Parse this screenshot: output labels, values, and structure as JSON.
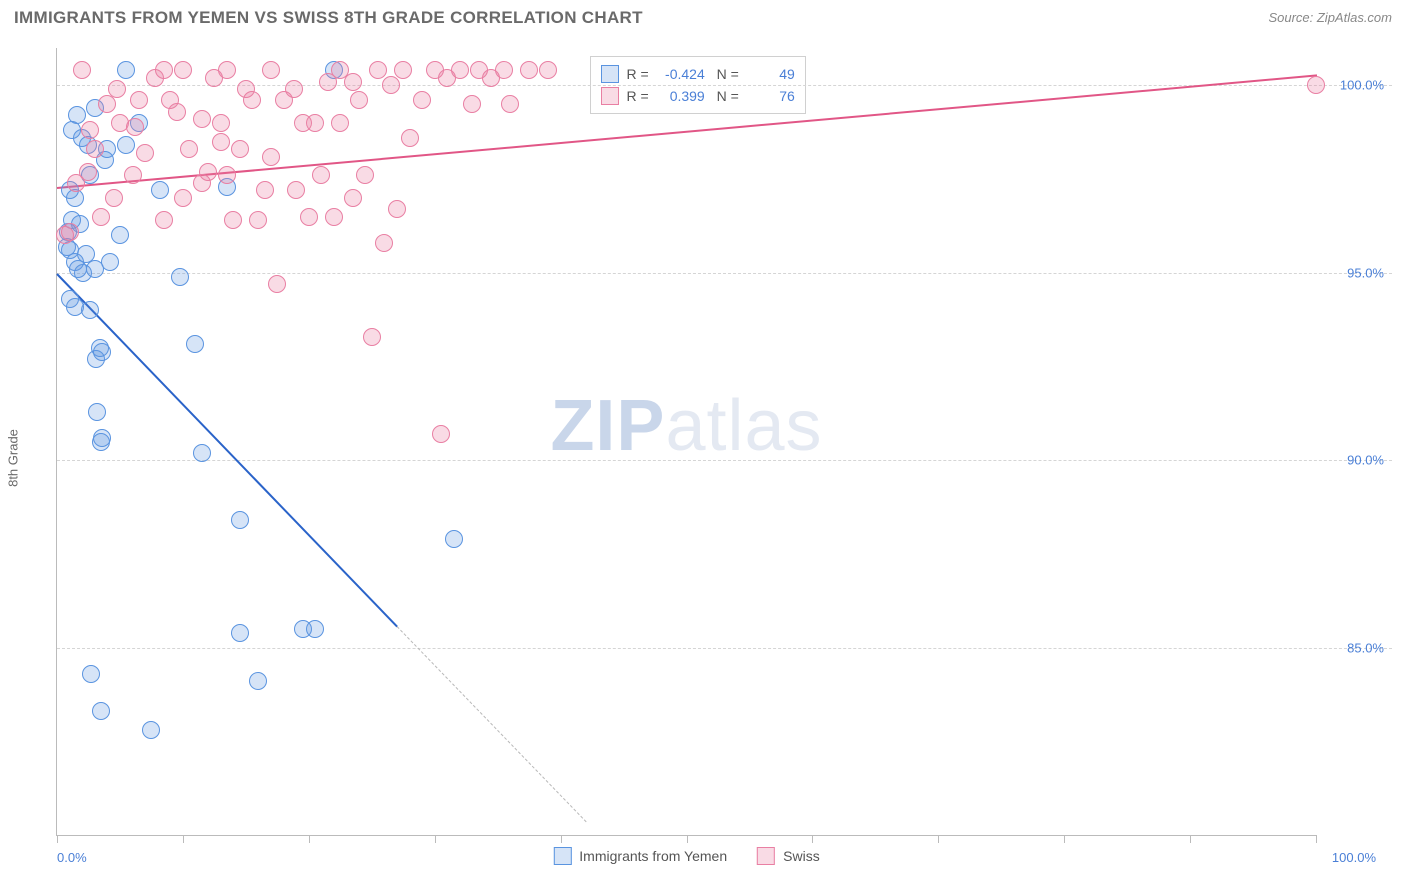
{
  "title": "IMMIGRANTS FROM YEMEN VS SWISS 8TH GRADE CORRELATION CHART",
  "source_prefix": "Source: ",
  "source": "ZipAtlas.com",
  "ylabel": "8th Grade",
  "chart": {
    "type": "scatter",
    "xlim": [
      0,
      100
    ],
    "ylim": [
      80,
      101
    ],
    "x_ticks": [
      0,
      10,
      20,
      30,
      40,
      50,
      60,
      70,
      80,
      90,
      100
    ],
    "y_ticks": [
      85,
      90,
      95,
      100
    ],
    "y_tick_labels": [
      "85.0%",
      "90.0%",
      "95.0%",
      "100.0%"
    ],
    "x_min_label": "0.0%",
    "x_max_label": "100.0%",
    "grid_color": "#d5d5d5",
    "axis_color": "#bbbbbb",
    "background_color": "#ffffff",
    "tick_label_color": "#4a7fd6",
    "marker_radius": 9,
    "marker_stroke": 1.5,
    "marker_fill_opacity": 0.25,
    "series": [
      {
        "id": "yemen",
        "label": "Immigrants from Yemen",
        "color": "#5a94e0",
        "fill": "rgba(90,148,224,0.25)",
        "R": "-0.424",
        "N": "49",
        "trend": {
          "x1": 0,
          "y1": 95.0,
          "x2": 27,
          "y2": 85.6,
          "solid_color": "#2a63c9",
          "solid_width": 2.2
        },
        "trend_extend": {
          "x1": 27,
          "y1": 85.6,
          "x2": 42,
          "y2": 80.4,
          "dash": true,
          "dash_color": "#b9b9b9",
          "dash_width": 1.4
        },
        "points": [
          [
            5.5,
            100.4
          ],
          [
            3.0,
            99.4
          ],
          [
            22.0,
            100.4
          ],
          [
            1.2,
            98.8
          ],
          [
            2.0,
            98.6
          ],
          [
            2.5,
            98.4
          ],
          [
            4.0,
            98.3
          ],
          [
            5.5,
            98.4
          ],
          [
            3.8,
            98.0
          ],
          [
            2.6,
            97.6
          ],
          [
            1.0,
            97.2
          ],
          [
            1.4,
            97.0
          ],
          [
            8.2,
            97.2
          ],
          [
            13.5,
            97.3
          ],
          [
            0.8,
            95.7
          ],
          [
            1.0,
            95.6
          ],
          [
            2.3,
            95.5
          ],
          [
            1.4,
            95.3
          ],
          [
            1.7,
            95.1
          ],
          [
            2.1,
            95.0
          ],
          [
            3.0,
            95.1
          ],
          [
            9.8,
            94.9
          ],
          [
            1.0,
            94.3
          ],
          [
            1.4,
            94.1
          ],
          [
            2.6,
            94.0
          ],
          [
            3.4,
            93.0
          ],
          [
            3.6,
            92.9
          ],
          [
            3.1,
            92.7
          ],
          [
            11.0,
            93.1
          ],
          [
            3.2,
            91.3
          ],
          [
            3.6,
            90.6
          ],
          [
            3.5,
            90.5
          ],
          [
            11.5,
            90.2
          ],
          [
            31.5,
            87.9
          ],
          [
            14.5,
            88.4
          ],
          [
            19.5,
            85.5
          ],
          [
            20.5,
            85.5
          ],
          [
            14.5,
            85.4
          ],
          [
            2.7,
            84.3
          ],
          [
            16.0,
            84.1
          ],
          [
            7.5,
            82.8
          ],
          [
            3.5,
            83.3
          ],
          [
            1.2,
            96.4
          ],
          [
            0.9,
            96.1
          ],
          [
            1.8,
            96.3
          ],
          [
            6.5,
            99.0
          ],
          [
            1.6,
            99.2
          ],
          [
            5.0,
            96.0
          ],
          [
            4.2,
            95.3
          ]
        ]
      },
      {
        "id": "swiss",
        "label": "Swiss",
        "color": "#e97fa3",
        "fill": "rgba(233,127,163,0.28)",
        "R": "0.399",
        "N": "76",
        "trend": {
          "x1": 0,
          "y1": 97.3,
          "x2": 100,
          "y2": 100.3,
          "solid_color": "#e15686",
          "solid_width": 2.2
        },
        "points": [
          [
            2.0,
            100.4
          ],
          [
            8.5,
            100.4
          ],
          [
            10.0,
            100.4
          ],
          [
            13.5,
            100.4
          ],
          [
            17.0,
            100.4
          ],
          [
            22.5,
            100.4
          ],
          [
            25.5,
            100.4
          ],
          [
            27.5,
            100.4
          ],
          [
            30.0,
            100.4
          ],
          [
            32.0,
            100.4
          ],
          [
            33.5,
            100.4
          ],
          [
            35.5,
            100.4
          ],
          [
            37.5,
            100.4
          ],
          [
            39.0,
            100.4
          ],
          [
            100.0,
            100.0
          ],
          [
            4.0,
            99.5
          ],
          [
            6.5,
            99.6
          ],
          [
            9.0,
            99.6
          ],
          [
            15.5,
            99.6
          ],
          [
            18.0,
            99.6
          ],
          [
            24.0,
            99.6
          ],
          [
            29.0,
            99.6
          ],
          [
            33.0,
            99.5
          ],
          [
            36.0,
            99.5
          ],
          [
            5.0,
            99.0
          ],
          [
            11.5,
            99.1
          ],
          [
            13.0,
            99.0
          ],
          [
            19.5,
            99.0
          ],
          [
            20.5,
            99.0
          ],
          [
            22.5,
            99.0
          ],
          [
            28.0,
            98.6
          ],
          [
            3.0,
            98.3
          ],
          [
            7.0,
            98.2
          ],
          [
            10.5,
            98.3
          ],
          [
            14.5,
            98.3
          ],
          [
            17.0,
            98.1
          ],
          [
            2.5,
            97.7
          ],
          [
            6.0,
            97.6
          ],
          [
            12.0,
            97.7
          ],
          [
            13.5,
            97.6
          ],
          [
            21.0,
            97.6
          ],
          [
            24.5,
            97.6
          ],
          [
            4.5,
            97.0
          ],
          [
            10.0,
            97.0
          ],
          [
            11.5,
            97.4
          ],
          [
            16.5,
            97.2
          ],
          [
            19.0,
            97.2
          ],
          [
            23.5,
            97.0
          ],
          [
            3.5,
            96.5
          ],
          [
            8.5,
            96.4
          ],
          [
            14.0,
            96.4
          ],
          [
            16.0,
            96.4
          ],
          [
            20.0,
            96.5
          ],
          [
            22.0,
            96.5
          ],
          [
            27.0,
            96.7
          ],
          [
            1.0,
            96.1
          ],
          [
            0.6,
            96.0
          ],
          [
            17.5,
            94.7
          ],
          [
            26.0,
            95.8
          ],
          [
            25.0,
            93.3
          ],
          [
            30.5,
            90.7
          ],
          [
            2.6,
            98.8
          ],
          [
            1.5,
            97.4
          ],
          [
            4.8,
            99.9
          ],
          [
            7.8,
            100.2
          ],
          [
            12.5,
            100.2
          ],
          [
            15.0,
            99.9
          ],
          [
            18.8,
            99.9
          ],
          [
            21.5,
            100.1
          ],
          [
            23.5,
            100.1
          ],
          [
            26.5,
            100.0
          ],
          [
            31.0,
            100.2
          ],
          [
            34.5,
            100.2
          ],
          [
            6.2,
            98.9
          ],
          [
            9.5,
            99.3
          ],
          [
            13.0,
            98.5
          ]
        ]
      }
    ]
  },
  "rn_box": {
    "left_pct": 42.3,
    "top_pct": 1.0
  },
  "rn_labels": {
    "R": "R =",
    "N": "N ="
  },
  "legend_bottom": [
    {
      "label": "Immigrants from Yemen",
      "fill": "rgba(90,148,224,0.25)",
      "stroke": "#5a94e0"
    },
    {
      "label": "Swiss",
      "fill": "rgba(233,127,163,0.28)",
      "stroke": "#e97fa3"
    }
  ],
  "watermark": {
    "bold": "ZIP",
    "light": "atlas",
    "bold_color": "#c9d6ea",
    "light_color": "#e4e9f2"
  }
}
